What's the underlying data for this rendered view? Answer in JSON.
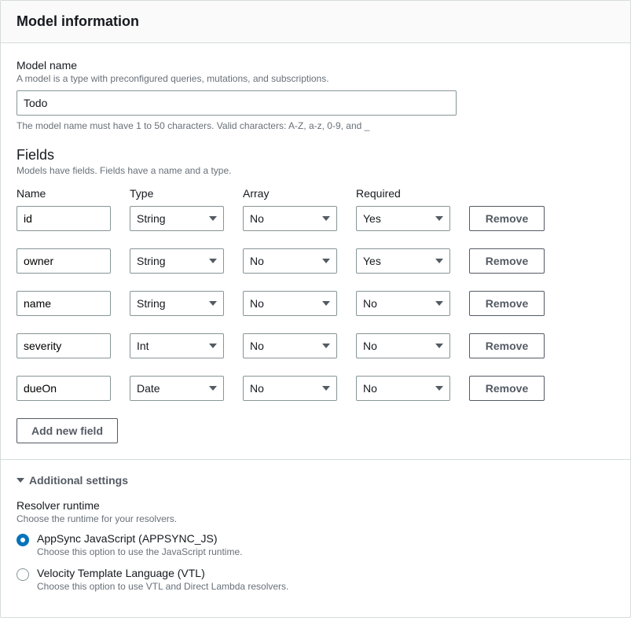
{
  "header": {
    "title": "Model information"
  },
  "modelName": {
    "label": "Model name",
    "description": "A model is a type with preconfigured queries, mutations, and subscriptions.",
    "value": "Todo",
    "constraint": "The model name must have 1 to 50 characters. Valid characters: A-Z, a-z, 0-9, and _"
  },
  "fieldsSection": {
    "title": "Fields",
    "description": "Models have fields. Fields have a name and a type.",
    "columns": {
      "name": "Name",
      "type": "Type",
      "array": "Array",
      "required": "Required"
    },
    "removeLabel": "Remove",
    "addLabel": "Add new field",
    "rows": [
      {
        "name": "id",
        "type": "String",
        "array": "No",
        "required": "Yes"
      },
      {
        "name": "owner",
        "type": "String",
        "array": "No",
        "required": "Yes"
      },
      {
        "name": "name",
        "type": "String",
        "array": "No",
        "required": "No"
      },
      {
        "name": "severity",
        "type": "Int",
        "array": "No",
        "required": "No"
      },
      {
        "name": "dueOn",
        "type": "Date",
        "array": "No",
        "required": "No"
      }
    ]
  },
  "additional": {
    "title": "Additional settings",
    "runtime": {
      "label": "Resolver runtime",
      "description": "Choose the runtime for your resolvers.",
      "options": [
        {
          "label": "AppSync JavaScript (APPSYNC_JS)",
          "description": "Choose this option to use the JavaScript runtime.",
          "checked": true
        },
        {
          "label": "Velocity Template Language (VTL)",
          "description": "Choose this option to use VTL and Direct Lambda resolvers.",
          "checked": false
        }
      ]
    }
  },
  "colors": {
    "border": "#d5dbdb",
    "inputBorder": "#879596",
    "textPrimary": "#16191f",
    "textSecondary": "#687078",
    "textMuted": "#545b64",
    "accent": "#0073bb",
    "headerBg": "#fafafa"
  }
}
